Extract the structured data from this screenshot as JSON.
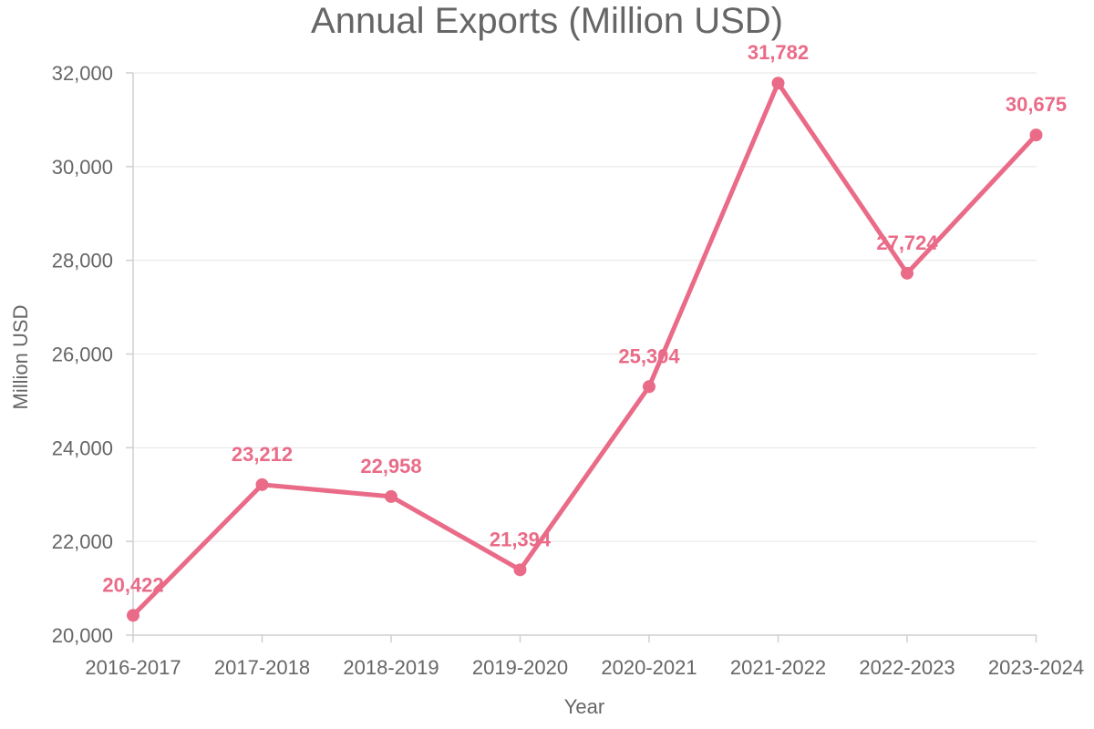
{
  "chart_data": {
    "type": "line",
    "title": "Annual Exports (Million USD)",
    "xlabel": "Year",
    "ylabel": "Million USD",
    "categories": [
      "2016-2017",
      "2017-2018",
      "2018-2019",
      "2019-2020",
      "2020-2021",
      "2021-2022",
      "2022-2023",
      "2023-2024"
    ],
    "series": [
      {
        "values": [
          20422,
          23212,
          22958,
          21394,
          25304,
          31782,
          27724,
          30675
        ],
        "value_labels": [
          "20,422",
          "23,212",
          "22,958",
          "21,394",
          "25,304",
          "31,782",
          "27,724",
          "30,675"
        ],
        "color": "#ea6b88"
      }
    ],
    "ylim": [
      20000,
      32000
    ],
    "yticks": [
      20000,
      22000,
      24000,
      26000,
      28000,
      30000,
      32000
    ],
    "ytick_labels": [
      "20,000",
      "22,000",
      "24,000",
      "26,000",
      "28,000",
      "30,000",
      "32,000"
    ],
    "grid": true,
    "legend": "none"
  }
}
